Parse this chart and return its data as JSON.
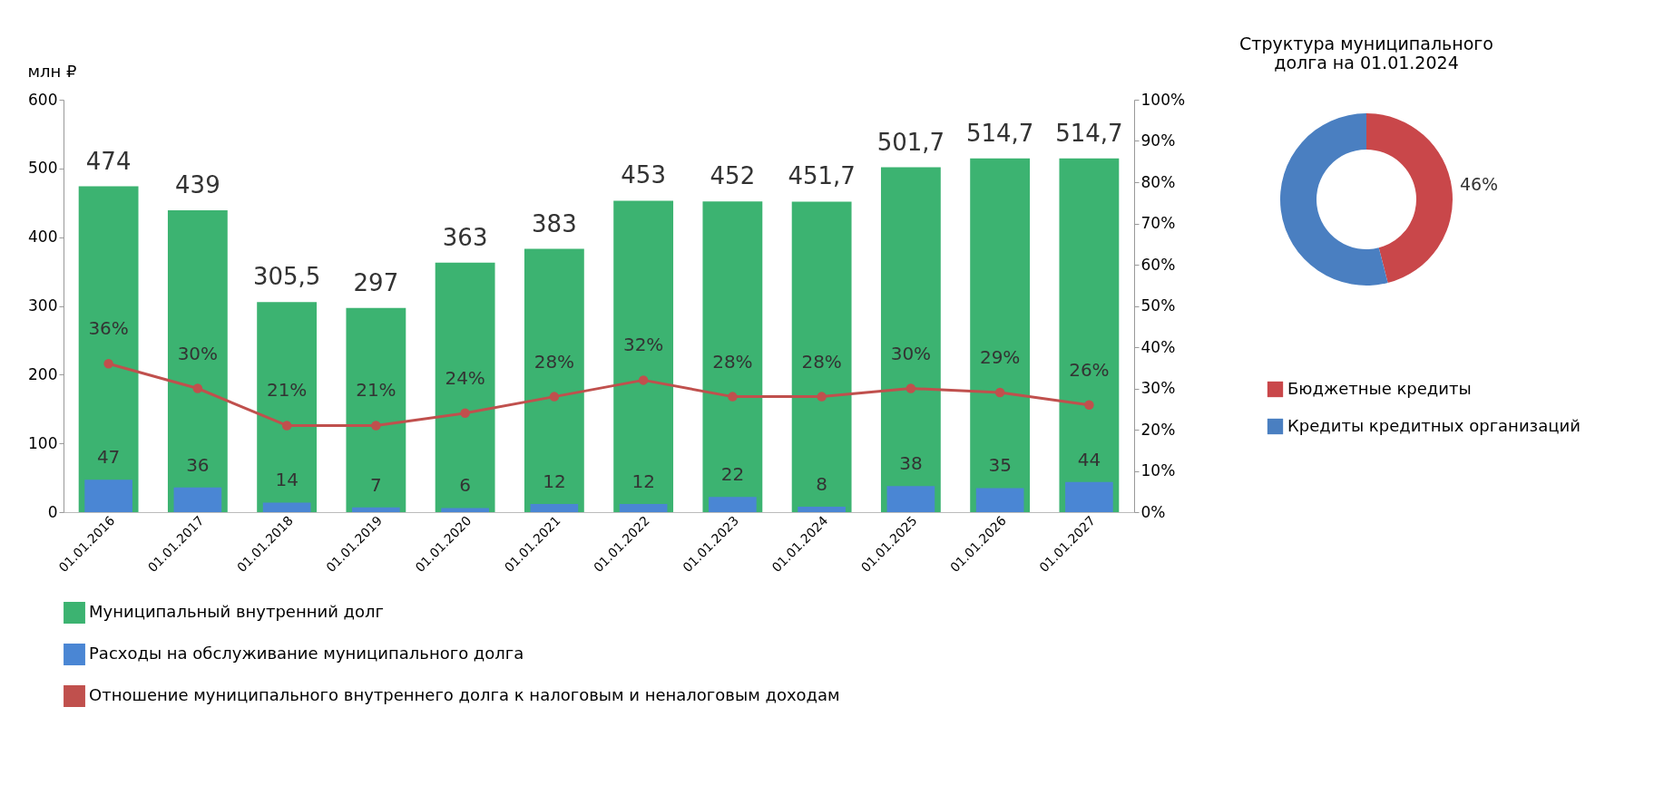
{
  "chart_data": [
    {
      "type": "bar",
      "ylabel": "млн ₽",
      "categories": [
        "01.01.2016",
        "01.01.2017",
        "01.01.2018",
        "01.01.2019",
        "01.01.2020",
        "01.01.2021",
        "01.01.2022",
        "01.01.2023",
        "01.01.2024",
        "01.01.2025",
        "01.01.2026",
        "01.01.2027"
      ],
      "series": [
        {
          "name": "Муниципальный внутренний долг",
          "color": "#3cb371",
          "values": [
            474,
            439,
            305.5,
            297,
            363,
            383,
            453,
            452,
            451.7,
            501.7,
            514.7,
            514.7
          ],
          "value_labels": [
            "474",
            "439",
            "305,5",
            "297",
            "363",
            "383",
            "453",
            "452",
            "451,7",
            "501,7",
            "514,7",
            "514,7"
          ]
        },
        {
          "name": "Расходы на обслуживание муниципального долга",
          "color": "#4a86d4",
          "values": [
            47,
            36,
            14,
            7,
            6,
            12,
            12,
            22,
            8,
            38,
            35,
            44
          ]
        },
        {
          "name": "Отношение муниципального внутреннего долга к налоговым и неналоговым доходам",
          "type": "line",
          "axis": "y2",
          "color": "#c0504d",
          "values": [
            36,
            30,
            21,
            21,
            24,
            28,
            32,
            28,
            28,
            30,
            29,
            26
          ],
          "value_labels": [
            "36%",
            "30%",
            "21%",
            "21%",
            "24%",
            "28%",
            "32%",
            "28%",
            "28%",
            "30%",
            "29%",
            "26%"
          ]
        }
      ],
      "data_labels": true,
      "ylim": [
        0,
        600
      ],
      "yticks": [
        0,
        100,
        200,
        300,
        400,
        500,
        600
      ],
      "y2lim": [
        0,
        100
      ],
      "y2ticks": [
        {
          "value": 0,
          "label": "0%"
        },
        {
          "value": 10,
          "label": "10%"
        },
        {
          "value": 20,
          "label": "20%"
        },
        {
          "value": 30,
          "label": "30%"
        },
        {
          "value": 40,
          "label": "40%"
        },
        {
          "value": 50,
          "label": "50%"
        },
        {
          "value": 60,
          "label": "60%"
        },
        {
          "value": 70,
          "label": "70%"
        },
        {
          "value": 80,
          "label": "80%"
        },
        {
          "value": 90,
          "label": "90%"
        },
        {
          "value": 100,
          "label": "100%"
        }
      ],
      "marker": "circle",
      "grid": false,
      "legend": "bottom"
    },
    {
      "type": "donut",
      "title": "Структура муниципального долга на 01.01.2024",
      "categories": [
        "Бюджетные кредиты",
        "Кредиты кредитных организаций"
      ],
      "values": [
        46,
        54
      ],
      "colors": [
        "#c9474a",
        "#4a7fc1"
      ],
      "value_labels": [
        "46%",
        null
      ],
      "legend": "bottom"
    }
  ]
}
